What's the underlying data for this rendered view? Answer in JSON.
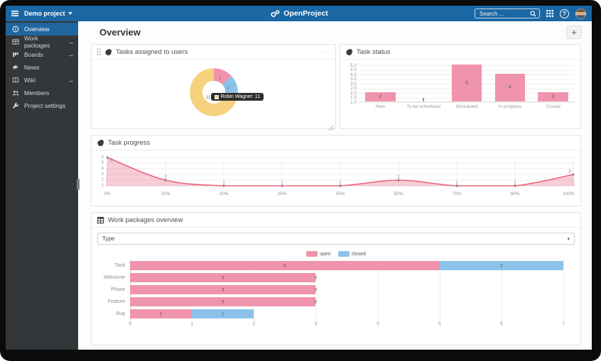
{
  "topbar": {
    "project_name": "Demo project",
    "logo_text": "OpenProject",
    "search_placeholder": "Search ...",
    "help_label": "?"
  },
  "sidebar": {
    "items": [
      {
        "label": "Overview",
        "icon": "info-icon",
        "selected": true,
        "has_arrow": false
      },
      {
        "label": "Work packages",
        "icon": "work-packages-icon",
        "selected": false,
        "has_arrow": true
      },
      {
        "label": "Boards",
        "icon": "boards-icon",
        "selected": false,
        "has_arrow": true
      },
      {
        "label": "News",
        "icon": "news-icon",
        "selected": false,
        "has_arrow": false
      },
      {
        "label": "Wiki",
        "icon": "wiki-icon",
        "selected": false,
        "has_arrow": true
      },
      {
        "label": "Members",
        "icon": "members-icon",
        "selected": false,
        "has_arrow": false
      },
      {
        "label": "Project settings",
        "icon": "settings-icon",
        "selected": false,
        "has_arrow": false
      }
    ],
    "arrow_glyph": "→"
  },
  "page": {
    "title": "Overview",
    "add_button_label": "+"
  },
  "widgets": {
    "tasks_assigned": {
      "title": "Tasks assigned to users",
      "menu_icon": "···",
      "tooltip_text": "Robin Wagner: 11"
    },
    "task_status": {
      "title": "Task status"
    },
    "task_progress": {
      "title": "Task progress"
    },
    "wp_overview": {
      "title": "Work packages overview",
      "filter_value": "Type",
      "caret": "▾"
    }
  },
  "colors": {
    "topbar_blue": "#1a67a3",
    "sidebar_bg": "#333739",
    "sidebar_selected": "#20669e",
    "open_pink": "#ef94ac",
    "closed_blue": "#8cc2ea",
    "assigned_yellow": "#f6d27e",
    "line_pink": "#ec647f"
  },
  "chart_data": [
    {
      "id": "tasks_assigned_to_users",
      "type": "pie",
      "title": "Tasks assigned to users",
      "donut": true,
      "segments": [
        {
          "label": "",
          "value": 2,
          "color": "#ef94ac"
        },
        {
          "label": "",
          "value": 2,
          "color": "#8cc2ea"
        },
        {
          "label": "Robin Wagner",
          "value": 11,
          "color": "#f6d27e"
        }
      ],
      "tooltip": {
        "label": "Robin Wagner",
        "value": 11
      }
    },
    {
      "id": "task_status",
      "type": "bar",
      "title": "Task status",
      "categories": [
        "New",
        "To be scheduled",
        "Scheduled",
        "In progress",
        "Closed"
      ],
      "values": [
        2,
        1,
        5,
        4,
        2
      ],
      "bar_color": "#ef94ac",
      "ylim": [
        1.0,
        5.0
      ],
      "yticks": [
        "5.0",
        "4.5",
        "4.0",
        "3.5",
        "3.0",
        "2.5",
        "2.0",
        "1.5",
        "1.0"
      ],
      "grid": true,
      "legend": "none"
    },
    {
      "id": "task_progress",
      "type": "area",
      "title": "Task progress",
      "x": [
        "0%",
        "15%",
        "20%",
        "25%",
        "35%",
        "50%",
        "70%",
        "80%",
        "100%"
      ],
      "values": [
        6,
        2,
        1,
        1,
        1,
        2,
        1,
        1,
        3
      ],
      "ylim": [
        1,
        6
      ],
      "yticks": [
        "6",
        "5",
        "4",
        "3",
        "2",
        "1"
      ],
      "line_color": "#ec647f",
      "fill_color": "rgba(236,100,127,0.32)",
      "grid": true,
      "legend": "none"
    },
    {
      "id": "work_packages_overview",
      "type": "bar",
      "orientation": "horizontal",
      "stacked": true,
      "title": "Work packages overview",
      "categories": [
        "Task",
        "Milestone",
        "Phase",
        "Feature",
        "Bug"
      ],
      "series": [
        {
          "name": "open",
          "color": "#ef94ac",
          "values": [
            5,
            3,
            3,
            3,
            1
          ]
        },
        {
          "name": "closed",
          "color": "#8cc2ea",
          "values": [
            2,
            0,
            0,
            0,
            1
          ]
        }
      ],
      "xlim": [
        0,
        7
      ],
      "xticks": [
        "0",
        "1",
        "2",
        "3",
        "4",
        "5",
        "6",
        "7"
      ],
      "grid": true,
      "legend_position": "top-center"
    }
  ]
}
